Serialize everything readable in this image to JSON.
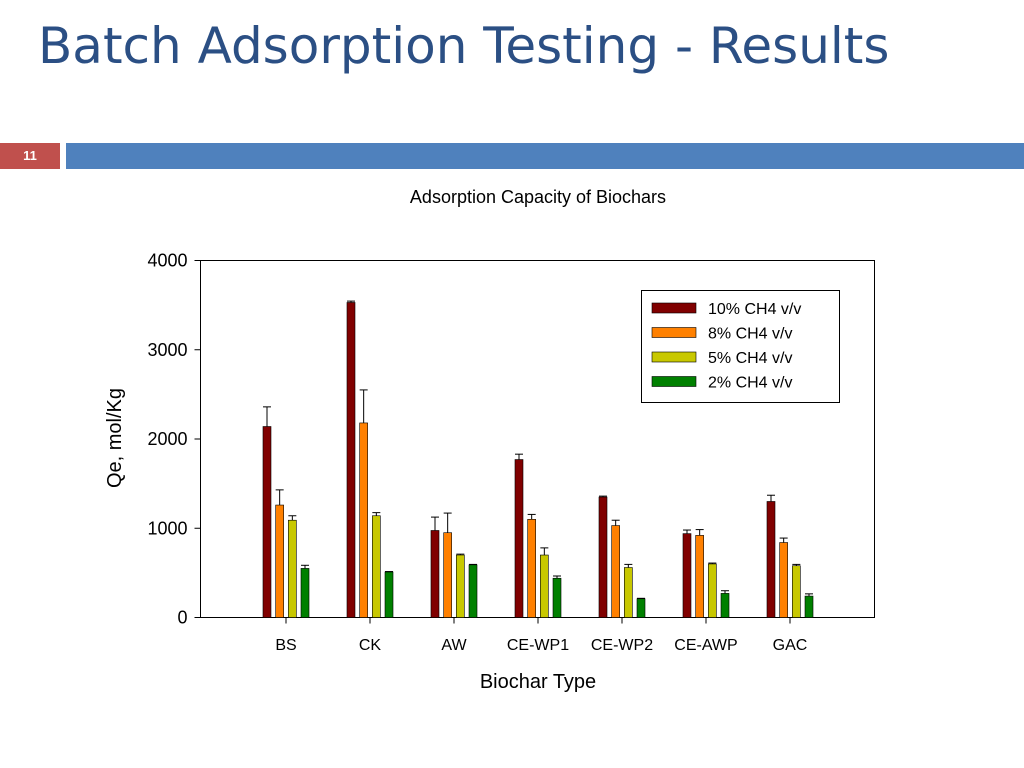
{
  "slide": {
    "title": "Batch Adsorption Testing - Results",
    "number": "11"
  },
  "colors": {
    "title": "#2b4f84",
    "number_bg": "#c0504d",
    "accent_bar": "#4f81bd"
  },
  "chart_data": {
    "type": "bar",
    "title": "Adsorption Capacity of Biochars",
    "xlabel": "Biochar Type",
    "ylabel": "Qe, mol/Kg",
    "ylim": [
      0,
      4000
    ],
    "yticks": [
      0,
      1000,
      2000,
      3000,
      4000
    ],
    "grid": false,
    "legend_position": "top-right",
    "error_bars": true,
    "categories": [
      "BS",
      "CK",
      "AW",
      "CE-WP1",
      "CE-WP2",
      "CE-AWP",
      "GAC"
    ],
    "series": [
      {
        "name": "10% CH4 v/v",
        "color": "#800000",
        "values": [
          2140,
          3530,
          975,
          1770,
          1350,
          940,
          1300
        ],
        "errors": [
          220,
          15,
          150,
          60,
          10,
          40,
          70
        ]
      },
      {
        "name": "8% CH4 v/v",
        "color": "#ff8000",
        "values": [
          1260,
          2180,
          950,
          1100,
          1030,
          920,
          840
        ],
        "errors": [
          170,
          370,
          220,
          55,
          60,
          65,
          50
        ]
      },
      {
        "name": "5% CH4 v/v",
        "color": "#c8c800",
        "values": [
          1090,
          1140,
          700,
          700,
          560,
          600,
          580
        ],
        "errors": [
          50,
          35,
          10,
          80,
          35,
          10,
          15
        ]
      },
      {
        "name": "2% CH4 v/v",
        "color": "#008000",
        "values": [
          550,
          510,
          590,
          440,
          210,
          270,
          240
        ],
        "errors": [
          35,
          5,
          5,
          25,
          5,
          30,
          25
        ]
      }
    ]
  }
}
